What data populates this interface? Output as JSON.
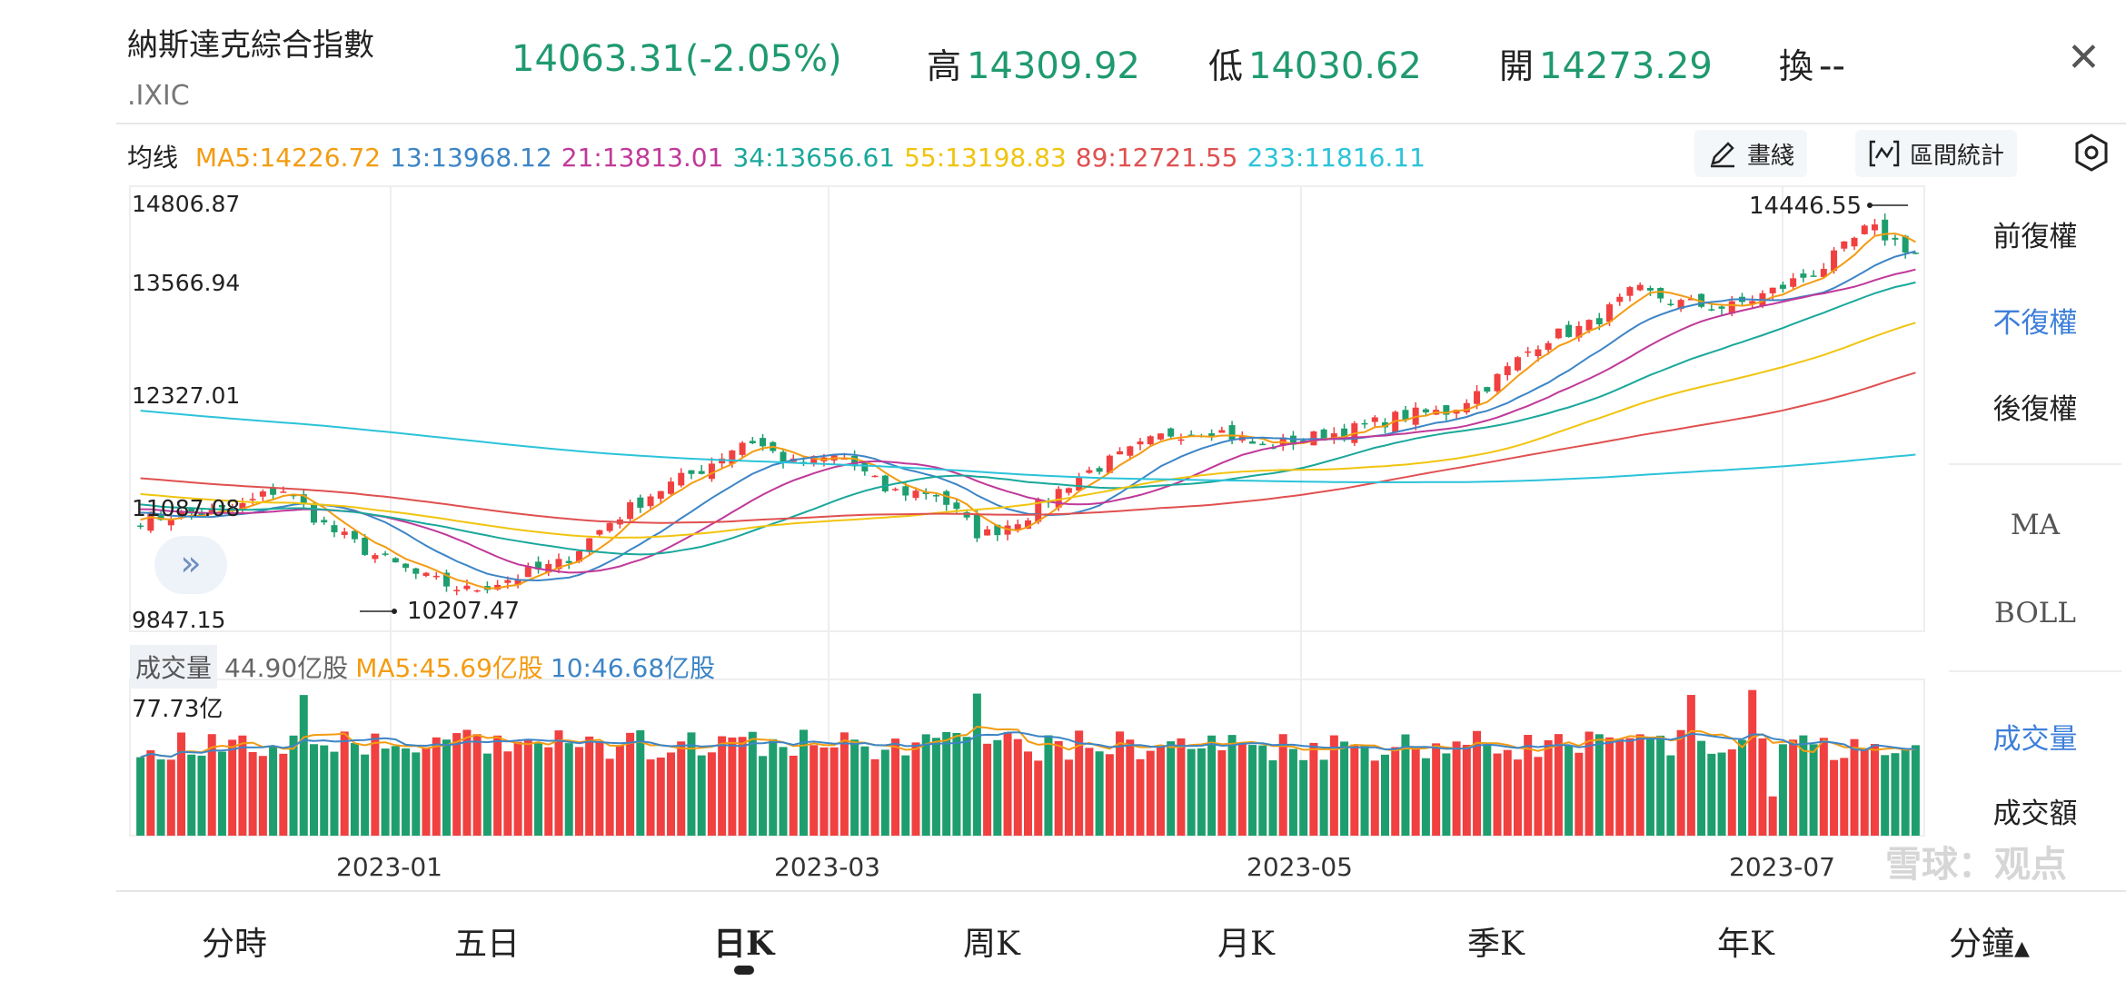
{
  "header": {
    "title": "納斯達克綜合指數",
    "code": ".IXIC",
    "price": "14063.31(-2.05%)",
    "high_label": "高",
    "high": "14309.92",
    "low_label": "低",
    "low": "14030.62",
    "open_label": "開",
    "open": "14273.29",
    "turnover_label": "換",
    "turnover": "--",
    "close_icon": "close-icon"
  },
  "ma_legend": {
    "label": "均线",
    "items": [
      {
        "text": "MA5:14226.72",
        "color": "#f39c12"
      },
      {
        "text": "13:13968.12",
        "color": "#3d85c6"
      },
      {
        "text": "21:13813.01",
        "color": "#c0399a"
      },
      {
        "text": "34:13656.61",
        "color": "#1aa89b"
      },
      {
        "text": "55:13198.83",
        "color": "#f1c40f"
      },
      {
        "text": "89:12721.55",
        "color": "#e05050"
      },
      {
        "text": "233:11816.11",
        "color": "#2bc3d9"
      }
    ]
  },
  "toolbar": {
    "draw_label": "畫綫",
    "range_stats_label": "區間統計"
  },
  "price_axis": {
    "labels": [
      "14806.87",
      "13566.94",
      "12327.01",
      "11087.08",
      "9847.15"
    ],
    "max": 14806.87,
    "min": 9847.15,
    "high_marker": "14446.55",
    "low_marker": "10207.47"
  },
  "right_panel": {
    "adjust": [
      "前復權",
      "不復權",
      "後復權"
    ],
    "active_adjust": 1,
    "indicators": [
      "MA",
      "BOLL"
    ],
    "volume_tabs": [
      "成交量",
      "成交額"
    ],
    "active_volume": 0
  },
  "volume": {
    "badge": "成交量",
    "value": "44.90亿股",
    "ma5": "MA5:45.69亿股",
    "ma10": "10:46.68亿股",
    "max_label": "77.73亿",
    "max": 77.73
  },
  "dates": [
    "2023-01",
    "2023-03",
    "2023-05",
    "2023-07"
  ],
  "tabs": [
    "分時",
    "五日",
    "日K",
    "周K",
    "月K",
    "季K",
    "年K",
    "分鐘"
  ],
  "active_tab": 2,
  "watermark": "雪球：观点",
  "colors": {
    "up": "#f04040",
    "down": "#1e9e6e",
    "accent": "#3d7fd9"
  },
  "chart_data": {
    "type": "candlestick",
    "approx_weekly_close": [
      11100,
      11150,
      11200,
      11450,
      11000,
      10700,
      10450,
      10300,
      10450,
      10600,
      11050,
      11400,
      11650,
      12000,
      11700,
      11800,
      11400,
      11400,
      10900,
      11150,
      11550,
      11800,
      12050,
      12100,
      11900,
      12000,
      12100,
      12250,
      12300,
      12650,
      13100,
      13250,
      13650,
      13500,
      13450,
      13650,
      13900,
      14350,
      14063.31
    ]
  }
}
